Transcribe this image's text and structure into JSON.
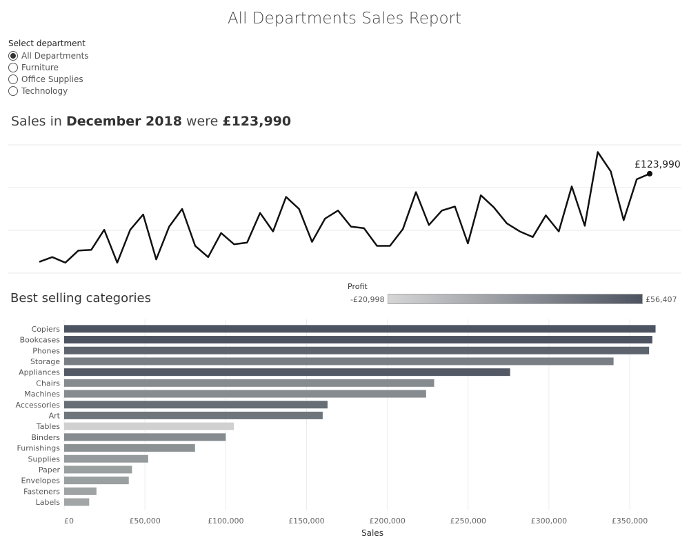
{
  "report": {
    "title": "All Departments Sales Report"
  },
  "filter": {
    "label": "Select department",
    "options": [
      "All Departments",
      "Furniture",
      "Office Supplies",
      "Technology"
    ],
    "selected": "All Departments"
  },
  "headline": {
    "prefix": "Sales in ",
    "period": "December 2018",
    "middle": " were ",
    "amount": "£123,990"
  },
  "best_selling": {
    "title": "Best selling categories"
  },
  "legend": {
    "title": "Profit",
    "min_label": "-£20,998",
    "max_label": "£56,407",
    "min_color": "#d6d6d6",
    "max_color": "#4d5360"
  },
  "chart_data": [
    {
      "type": "line",
      "title": "",
      "series": [
        {
          "values": [
            14000,
            20000,
            13000,
            28000,
            29000,
            54000,
            13000,
            54000,
            73000,
            17000,
            58000,
            80000,
            34000,
            20000,
            50000,
            36000,
            38000,
            75000,
            52000,
            95000,
            80000,
            39000,
            68000,
            78000,
            58000,
            56000,
            34000,
            34000,
            55000,
            101000,
            60000,
            78000,
            83000,
            37000,
            97000,
            82000,
            62000,
            52000,
            45000,
            72000,
            52000,
            108000,
            59000,
            151000,
            127000,
            66000,
            117000,
            123990
          ]
        }
      ],
      "last_point_label": "£123,990",
      "ylim": [
        0,
        160000
      ],
      "grid": true
    },
    {
      "type": "bar",
      "orientation": "horizontal",
      "categories": [
        "Copiers",
        "Bookcases",
        "Phones",
        "Storage",
        "Appliances",
        "Chairs",
        "Machines",
        "Accessories",
        "Art",
        "Tables",
        "Binders",
        "Furnishings",
        "Supplies",
        "Paper",
        "Envelopes",
        "Fasteners",
        "Labels"
      ],
      "values": [
        366000,
        364000,
        362000,
        340000,
        276000,
        229000,
        224000,
        163000,
        160000,
        105000,
        100000,
        81000,
        52000,
        42000,
        40000,
        20000,
        15500
      ],
      "colors": [
        "#4d5360",
        "#4d5360",
        "#5d646d",
        "#787e84",
        "#545a65",
        "#858b8f",
        "#858b8f",
        "#676e76",
        "#6e757b",
        "#d0d0d0",
        "#858b8f",
        "#8c9294",
        "#969b9d",
        "#9a9fa0",
        "#9a9fa0",
        "#9fa3a4",
        "#a1a5a6"
      ],
      "xlabel": "Sales",
      "xticks": [
        "£0",
        "£50,000",
        "£100,000",
        "£150,000",
        "£200,000",
        "£250,000",
        "£300,000",
        "£350,000"
      ],
      "xtick_values": [
        0,
        50000,
        100000,
        150000,
        200000,
        250000,
        300000,
        350000
      ],
      "xlim": [
        0,
        382000
      ],
      "grid": true
    }
  ]
}
